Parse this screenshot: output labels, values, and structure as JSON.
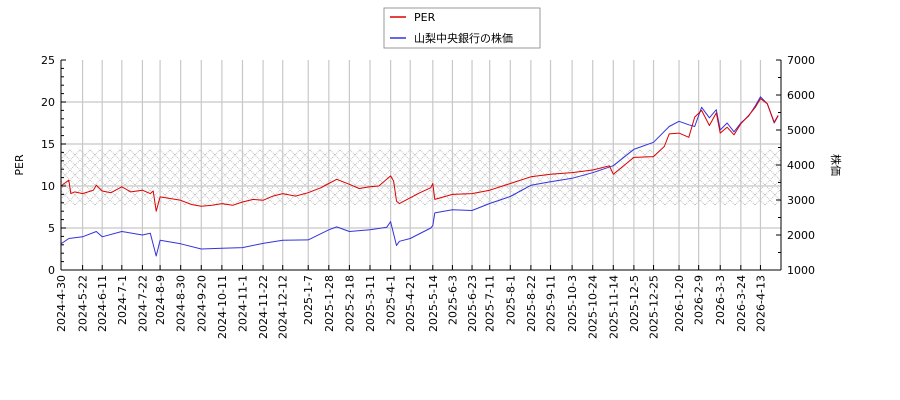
{
  "chart_data": {
    "type": "line",
    "title": "",
    "legend": {
      "position": "top-center",
      "entries": [
        {
          "label": "PER",
          "color": "#dd0000"
        },
        {
          "label": "山梨中央銀行の株価",
          "color": "#3333dd"
        }
      ]
    },
    "left_axis": {
      "label": "PER",
      "ylim": [
        0,
        25
      ],
      "ticks": [
        0,
        5,
        10,
        15,
        20,
        25
      ]
    },
    "right_axis": {
      "label": "株価",
      "ylim": [
        1000,
        7000
      ],
      "ticks": [
        1000,
        2000,
        3000,
        4000,
        5000,
        6000,
        7000
      ]
    },
    "xlabel": "",
    "x_tick_labels": [
      "2024-4-30",
      "2024-5-22",
      "2024-6-11",
      "2024-7-1",
      "2024-7-22",
      "2024-8-9",
      "2024-8-30",
      "2024-9-20",
      "2024-10-11",
      "2024-11-1",
      "2024-11-22",
      "2024-12-12",
      "2025-1-7",
      "2025-1-28",
      "2025-2-18",
      "2025-3-11",
      "2025-4-1",
      "2025-4-21",
      "2025-5-14",
      "2025-6-3",
      "2025-6-23",
      "2025-7-11",
      "2025-8-1",
      "2025-8-22",
      "2025-9-11",
      "2025-10-3",
      "2025-10-24",
      "2025-11-14",
      "2025-12-5",
      "2025-12-25",
      "2026-1-20",
      "2026-2-9",
      "2026-3-3",
      "2026-3-24",
      "2026-4-13"
    ],
    "grid": true,
    "shaded_band": {
      "axis": "left",
      "from": 7.7,
      "to": 14.4,
      "pattern": "crosshatch",
      "color": "#bbbbbb"
    },
    "series": [
      {
        "name": "PER",
        "axis": "left",
        "color": "#dd0000",
        "x": [
          "2024-4-30",
          "2024-5-8",
          "2024-5-10",
          "2024-5-14",
          "2024-5-22",
          "2024-6-2",
          "2024-6-5",
          "2024-6-11",
          "2024-6-20",
          "2024-7-1",
          "2024-7-10",
          "2024-7-22",
          "2024-7-30",
          "2024-8-2",
          "2024-8-5",
          "2024-8-9",
          "2024-8-20",
          "2024-8-30",
          "2024-9-10",
          "2024-9-20",
          "2024-10-1",
          "2024-10-11",
          "2024-10-22",
          "2024-11-1",
          "2024-11-12",
          "2024-11-22",
          "2024-12-2",
          "2024-12-12",
          "2024-12-25",
          "2025-1-7",
          "2025-1-20",
          "2025-1-28",
          "2025-2-5",
          "2025-2-18",
          "2025-2-28",
          "2025-3-11",
          "2025-3-20",
          "2025-3-28",
          "2025-4-1",
          "2025-4-4",
          "2025-4-7",
          "2025-4-10",
          "2025-4-21",
          "2025-5-1",
          "2025-5-12",
          "2025-5-14",
          "2025-5-16",
          "2025-6-3",
          "2025-6-23",
          "2025-7-11",
          "2025-8-1",
          "2025-8-22",
          "2025-9-11",
          "2025-10-3",
          "2025-10-24",
          "2025-11-10",
          "2025-11-14",
          "2025-12-5",
          "2025-12-25",
          "2026-1-5",
          "2026-1-10",
          "2026-1-20",
          "2026-1-30",
          "2026-2-5",
          "2026-2-12",
          "2026-2-20",
          "2026-2-27",
          "2026-3-3",
          "2026-3-10",
          "2026-3-17",
          "2026-3-24",
          "2026-4-1",
          "2026-4-8",
          "2026-4-13",
          "2026-4-20",
          "2026-4-27",
          "2026-5-1"
        ],
        "values": [
          10.0,
          10.7,
          9.1,
          9.3,
          9.1,
          9.5,
          10.1,
          9.4,
          9.2,
          9.9,
          9.3,
          9.5,
          9.1,
          9.4,
          7.0,
          8.7,
          8.5,
          8.3,
          7.8,
          7.6,
          7.7,
          7.9,
          7.7,
          8.1,
          8.4,
          8.3,
          8.8,
          9.1,
          8.8,
          9.2,
          9.8,
          10.3,
          10.8,
          10.2,
          9.7,
          9.9,
          10.0,
          10.8,
          11.2,
          10.6,
          8.2,
          7.9,
          8.6,
          9.2,
          9.8,
          10.3,
          8.4,
          9.0,
          9.1,
          9.5,
          10.3,
          11.1,
          11.4,
          11.6,
          11.9,
          12.4,
          11.4,
          13.4,
          13.5,
          14.7,
          16.2,
          16.3,
          15.8,
          18.2,
          19.0,
          17.2,
          18.7,
          16.3,
          17.0,
          16.1,
          17.4,
          18.4,
          19.4,
          20.4,
          19.8,
          17.6,
          18.4
        ]
      },
      {
        "name": "山梨中央銀行の株価",
        "axis": "right",
        "color": "#3333dd",
        "x": [
          "2024-4-30",
          "2024-5-8",
          "2024-5-22",
          "2024-6-5",
          "2024-6-11",
          "2024-7-1",
          "2024-7-22",
          "2024-7-30",
          "2024-8-5",
          "2024-8-9",
          "2024-8-30",
          "2024-9-20",
          "2024-10-11",
          "2024-11-1",
          "2024-11-22",
          "2024-12-12",
          "2025-1-7",
          "2025-1-28",
          "2025-2-5",
          "2025-2-18",
          "2025-3-11",
          "2025-3-28",
          "2025-4-1",
          "2025-4-7",
          "2025-4-10",
          "2025-4-21",
          "2025-5-12",
          "2025-5-14",
          "2025-5-16",
          "2025-6-3",
          "2025-6-23",
          "2025-7-11",
          "2025-8-1",
          "2025-8-22",
          "2025-9-11",
          "2025-10-3",
          "2025-10-24",
          "2025-11-14",
          "2025-12-5",
          "2025-12-25",
          "2026-1-10",
          "2026-1-20",
          "2026-1-30",
          "2026-2-5",
          "2026-2-12",
          "2026-2-20",
          "2026-2-27",
          "2026-3-3",
          "2026-3-10",
          "2026-3-17",
          "2026-3-24",
          "2026-4-1",
          "2026-4-8",
          "2026-4-13",
          "2026-4-20",
          "2026-4-27",
          "2026-5-1"
        ],
        "values": [
          1750,
          1900,
          1950,
          2100,
          1950,
          2100,
          2000,
          2050,
          1400,
          1850,
          1750,
          1600,
          1620,
          1640,
          1760,
          1850,
          1860,
          2150,
          2230,
          2100,
          2150,
          2220,
          2380,
          1700,
          1820,
          1900,
          2200,
          2270,
          2630,
          2720,
          2700,
          2900,
          3100,
          3420,
          3520,
          3620,
          3780,
          3980,
          4450,
          4650,
          5100,
          5250,
          5150,
          5100,
          5650,
          5350,
          5580,
          5000,
          5200,
          4950,
          5200,
          5400,
          5700,
          5950,
          5750,
          5200,
          5400
        ]
      }
    ]
  }
}
